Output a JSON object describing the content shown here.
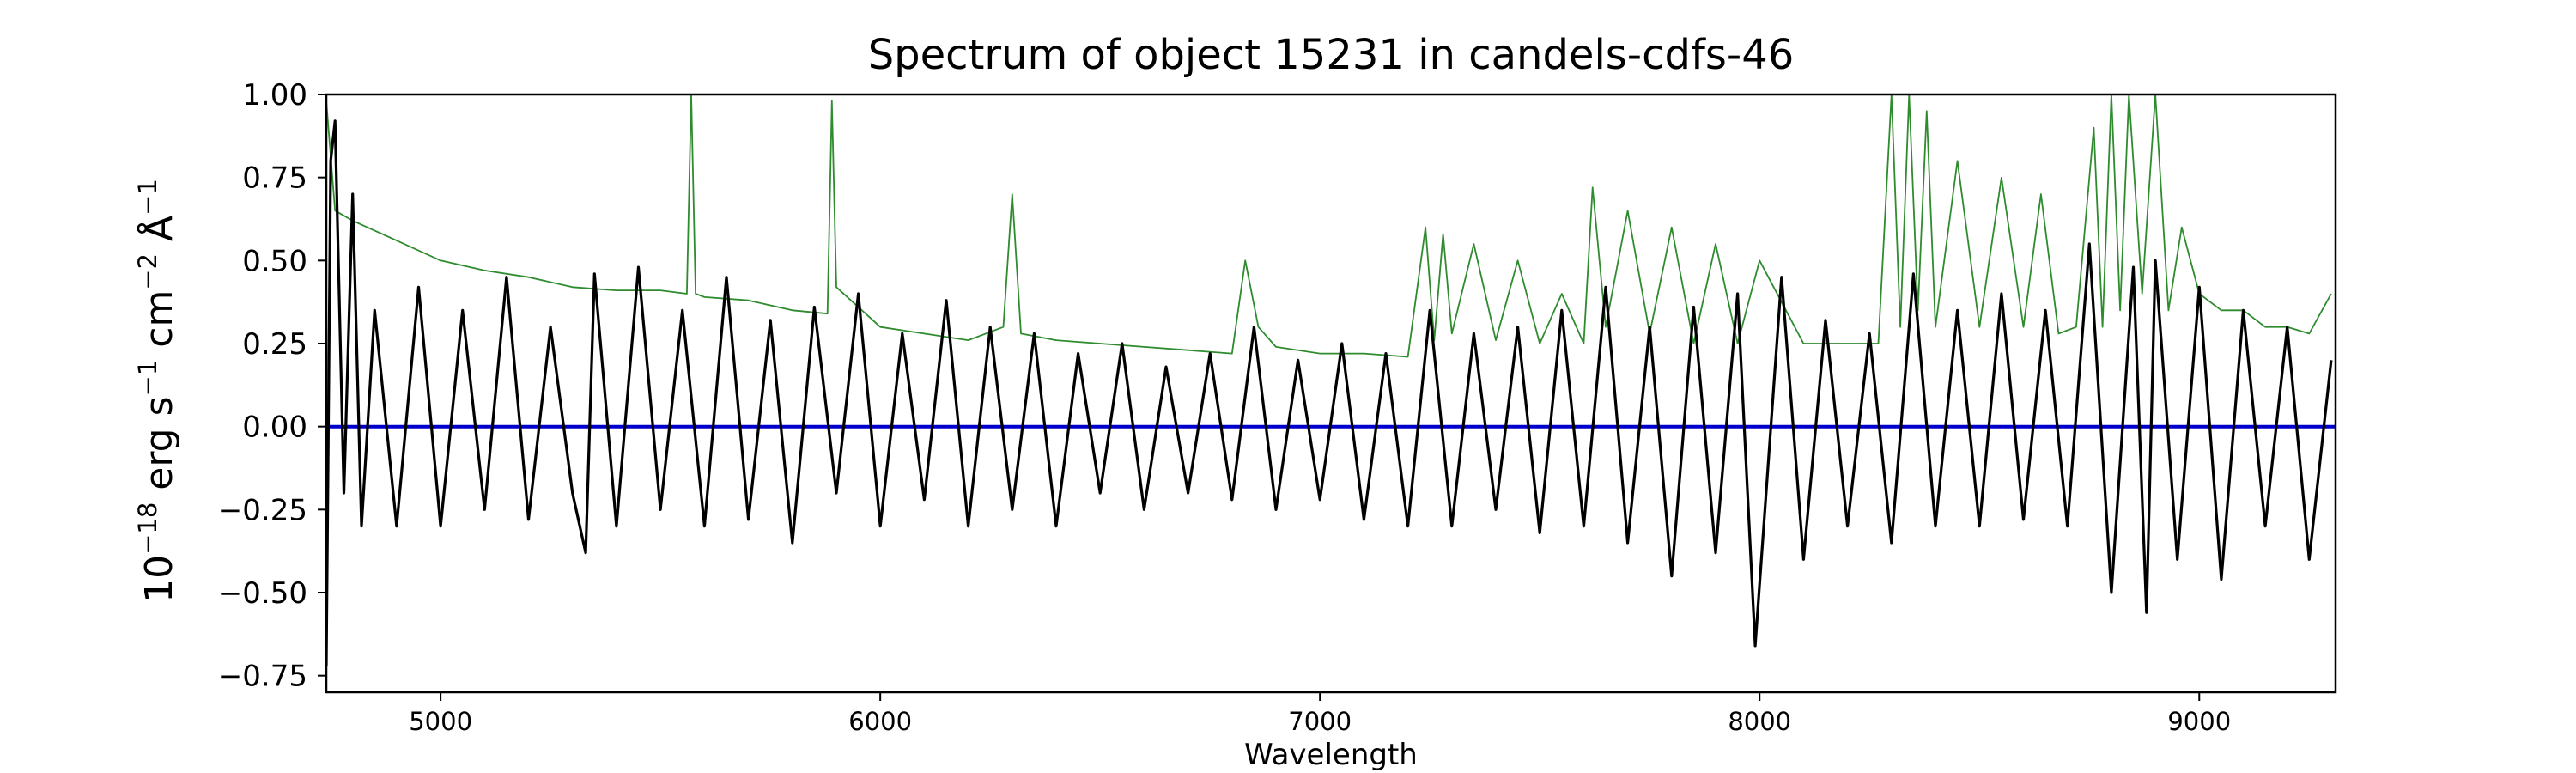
{
  "chart_data": {
    "type": "line",
    "title": "Spectrum of object 15231 in candels-cdfs-46",
    "xlabel": "Wavelength",
    "ylabel_parts": {
      "base": "10",
      "exp1": "−18",
      "mid1": " erg s",
      "exp2": "−1",
      "mid2": " cm",
      "exp3": "−2",
      "mid3": " Å",
      "exp4": "−1"
    },
    "xlim": [
      4740,
      9310
    ],
    "ylim": [
      -0.8,
      1.0
    ],
    "x_ticks": [
      5000,
      6000,
      7000,
      8000,
      9000
    ],
    "x_tick_labels": [
      "5000",
      "6000",
      "7000",
      "8000",
      "9000"
    ],
    "y_ticks": [
      -0.75,
      -0.5,
      -0.25,
      0.0,
      0.25,
      0.5,
      0.75,
      1.0
    ],
    "y_tick_labels": [
      "−0.75",
      "−0.50",
      "−0.25",
      "0.00",
      "0.25",
      "0.50",
      "0.75",
      "1.00"
    ],
    "grid": false,
    "legend": "none",
    "colors": {
      "flux": "#000000",
      "error": "#2e8b2e",
      "zero": "#0000cc"
    },
    "series": [
      {
        "style": "flux",
        "x": [
          4740,
          4750,
          4760,
          4780,
          4800,
          4820,
          4850,
          4900,
          4950,
          5000,
          5050,
          5100,
          5150,
          5200,
          5250,
          5300,
          5330,
          5350,
          5400,
          5450,
          5500,
          5550,
          5600,
          5650,
          5700,
          5750,
          5800,
          5850,
          5900,
          5950,
          6000,
          6050,
          6100,
          6150,
          6200,
          6250,
          6300,
          6350,
          6400,
          6450,
          6500,
          6550,
          6600,
          6650,
          6700,
          6750,
          6800,
          6850,
          6900,
          6950,
          7000,
          7050,
          7100,
          7150,
          7200,
          7250,
          7300,
          7350,
          7400,
          7450,
          7500,
          7550,
          7600,
          7650,
          7700,
          7750,
          7800,
          7850,
          7900,
          7950,
          7990,
          8050,
          8100,
          8150,
          8200,
          8250,
          8300,
          8350,
          8400,
          8450,
          8500,
          8550,
          8600,
          8650,
          8700,
          8750,
          8800,
          8850,
          8880,
          8900,
          8950,
          9000,
          9050,
          9100,
          9150,
          9200,
          9250,
          9300
        ],
        "y": [
          -0.72,
          0.8,
          0.92,
          -0.2,
          0.7,
          -0.3,
          0.35,
          -0.3,
          0.42,
          -0.3,
          0.35,
          -0.25,
          0.45,
          -0.28,
          0.3,
          -0.2,
          -0.38,
          0.46,
          -0.3,
          0.48,
          -0.25,
          0.35,
          -0.3,
          0.45,
          -0.28,
          0.32,
          -0.35,
          0.36,
          -0.2,
          0.4,
          -0.3,
          0.28,
          -0.22,
          0.38,
          -0.3,
          0.3,
          -0.25,
          0.28,
          -0.3,
          0.22,
          -0.2,
          0.25,
          -0.25,
          0.18,
          -0.2,
          0.22,
          -0.22,
          0.3,
          -0.25,
          0.2,
          -0.22,
          0.25,
          -0.28,
          0.22,
          -0.3,
          0.35,
          -0.3,
          0.28,
          -0.25,
          0.3,
          -0.32,
          0.35,
          -0.3,
          0.42,
          -0.35,
          0.3,
          -0.45,
          0.36,
          -0.38,
          0.4,
          -0.66,
          0.45,
          -0.4,
          0.32,
          -0.3,
          0.28,
          -0.35,
          0.46,
          -0.3,
          0.35,
          -0.3,
          0.4,
          -0.28,
          0.35,
          -0.3,
          0.55,
          -0.5,
          0.48,
          -0.56,
          0.5,
          -0.4,
          0.42,
          -0.46,
          0.35,
          -0.3,
          0.3,
          -0.4,
          0.2
        ]
      },
      {
        "style": "error",
        "x": [
          4740,
          4760,
          4800,
          4900,
          5000,
          5100,
          5200,
          5300,
          5400,
          5500,
          5560,
          5570,
          5580,
          5600,
          5700,
          5800,
          5880,
          5890,
          5900,
          5950,
          6000,
          6100,
          6200,
          6280,
          6300,
          6320,
          6400,
          6500,
          6600,
          6700,
          6800,
          6830,
          6860,
          6900,
          7000,
          7100,
          7200,
          7240,
          7260,
          7280,
          7300,
          7350,
          7400,
          7450,
          7500,
          7550,
          7600,
          7620,
          7650,
          7700,
          7750,
          7800,
          7850,
          7900,
          7950,
          8000,
          8100,
          8200,
          8270,
          8300,
          8320,
          8340,
          8360,
          8380,
          8400,
          8450,
          8500,
          8550,
          8600,
          8640,
          8680,
          8720,
          8760,
          8780,
          8800,
          8820,
          8840,
          8870,
          8900,
          8930,
          8960,
          9000,
          9050,
          9100,
          9150,
          9200,
          9250,
          9300
        ],
        "y": [
          0.98,
          0.65,
          0.62,
          0.56,
          0.5,
          0.47,
          0.45,
          0.42,
          0.41,
          0.41,
          0.4,
          1.0,
          0.4,
          0.39,
          0.38,
          0.35,
          0.34,
          0.98,
          0.42,
          0.36,
          0.3,
          0.28,
          0.26,
          0.3,
          0.7,
          0.28,
          0.26,
          0.25,
          0.24,
          0.23,
          0.22,
          0.5,
          0.3,
          0.24,
          0.22,
          0.22,
          0.21,
          0.6,
          0.26,
          0.58,
          0.28,
          0.55,
          0.26,
          0.5,
          0.25,
          0.4,
          0.25,
          0.72,
          0.3,
          0.65,
          0.28,
          0.6,
          0.25,
          0.55,
          0.25,
          0.5,
          0.25,
          0.25,
          0.25,
          1.0,
          0.3,
          1.0,
          0.35,
          0.95,
          0.3,
          0.8,
          0.3,
          0.75,
          0.3,
          0.7,
          0.28,
          0.3,
          0.9,
          0.3,
          1.0,
          0.35,
          1.0,
          0.4,
          1.0,
          0.35,
          0.6,
          0.4,
          0.35,
          0.35,
          0.3,
          0.3,
          0.28,
          0.4
        ]
      },
      {
        "style": "zero",
        "x": [
          4740,
          9310
        ],
        "y": [
          0.0,
          0.0
        ]
      }
    ]
  }
}
